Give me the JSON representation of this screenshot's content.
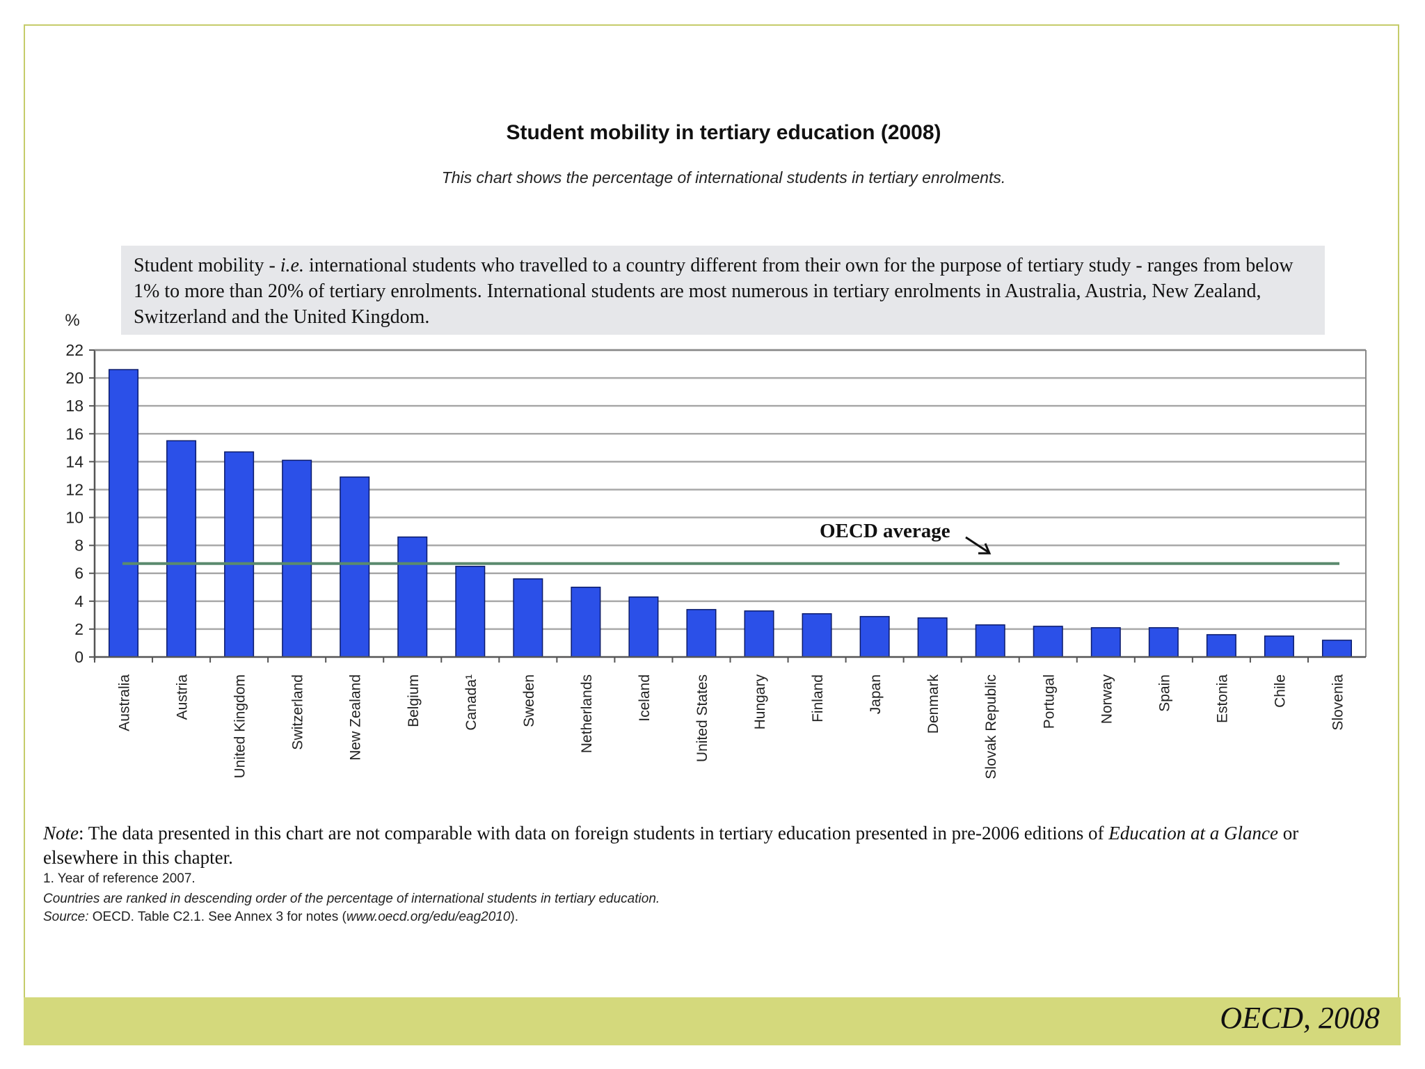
{
  "title": "Student mobility in tertiary education (2008)",
  "subtitle": "This chart shows the percentage of international students in tertiary enrolments.",
  "infobox": {
    "lead": "Student mobility - ",
    "ie": "i.e.",
    "text": " international students who travelled to a country different from their own for the purpose of tertiary study - ranges from below 1% to more than 20% of tertiary enrolments. International students are most numerous in tertiary enrolments in Australia, Austria, New Zealand, Switzerland and the United Kingdom."
  },
  "chart_data": {
    "type": "bar",
    "title": "Student mobility in tertiary education (2008)",
    "ylabel": "%",
    "xlabel": "",
    "ylim": [
      0,
      22
    ],
    "yticks": [
      0,
      2,
      4,
      6,
      8,
      10,
      12,
      14,
      16,
      18,
      20,
      22
    ],
    "grid": true,
    "categories": [
      "Australia",
      "Austria",
      "United Kingdom",
      "Switzerland",
      "New Zealand",
      "Belgium",
      "Canada¹",
      "Sweden",
      "Netherlands",
      "Iceland",
      "United States",
      "Hungary",
      "Finland",
      "Japan",
      "Denmark",
      "Slovak Republic",
      "Portugal",
      "Norway",
      "Spain",
      "Estonia",
      "Chile",
      "Slovenia"
    ],
    "values": [
      20.6,
      15.5,
      14.7,
      14.1,
      12.9,
      8.6,
      6.5,
      5.6,
      5.0,
      4.3,
      3.4,
      3.3,
      3.1,
      2.9,
      2.8,
      2.3,
      2.2,
      2.1,
      2.1,
      1.6,
      1.5,
      1.2
    ],
    "reference_line": {
      "label": "OECD average",
      "value": 6.7
    },
    "colors": {
      "bar": "#2b50e8",
      "bar_edge": "#0a1a6a",
      "average": "#5a8a6e",
      "grid": "#a8a8a8"
    }
  },
  "note": {
    "label": "Note",
    "text1": ": The data presented in this chart are not comparable with data on foreign students in tertiary education presented in pre-2006 editions of ",
    "book": "Education at a Glance",
    "text2": " or elsewhere in this chapter."
  },
  "footnote1": "1. Year of reference 2007.",
  "footnote2": "Countries are ranked in descending order of the percentage of international students in tertiary education.",
  "source_label": "Source:",
  "source_text": " OECD. Table C2.1. See Annex 3 for notes (",
  "source_url": "www.oecd.org/edu/eag2010",
  "source_end": ").",
  "citation": "OECD, 2008"
}
